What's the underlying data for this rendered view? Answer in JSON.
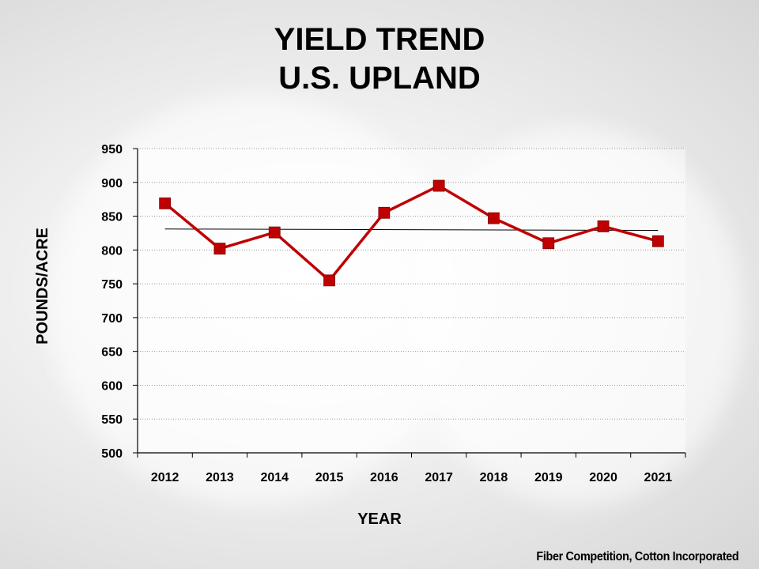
{
  "chart_data": {
    "type": "line",
    "title": "YIELD TREND",
    "subtitle": "U.S. UPLAND",
    "xlabel": "YEAR",
    "ylabel": "POUNDS/ACRE",
    "categories": [
      "2012",
      "2013",
      "2014",
      "2015",
      "2016",
      "2017",
      "2018",
      "2019",
      "2020",
      "2021"
    ],
    "series": [
      {
        "values": [
          869,
          802,
          826,
          755,
          855,
          895,
          847,
          810,
          835,
          813
        ],
        "color": "#c00000",
        "marker": "square"
      }
    ],
    "trendline": {
      "start": 831,
      "end": 829,
      "color": "#000000"
    },
    "ylim": [
      500,
      950
    ],
    "yticks": [
      "500",
      "550",
      "600",
      "650",
      "700",
      "750",
      "800",
      "850",
      "900",
      "950"
    ],
    "grid": true,
    "legend": "none"
  },
  "footer": {
    "source": "Fiber Competition, Cotton Incorporated"
  }
}
